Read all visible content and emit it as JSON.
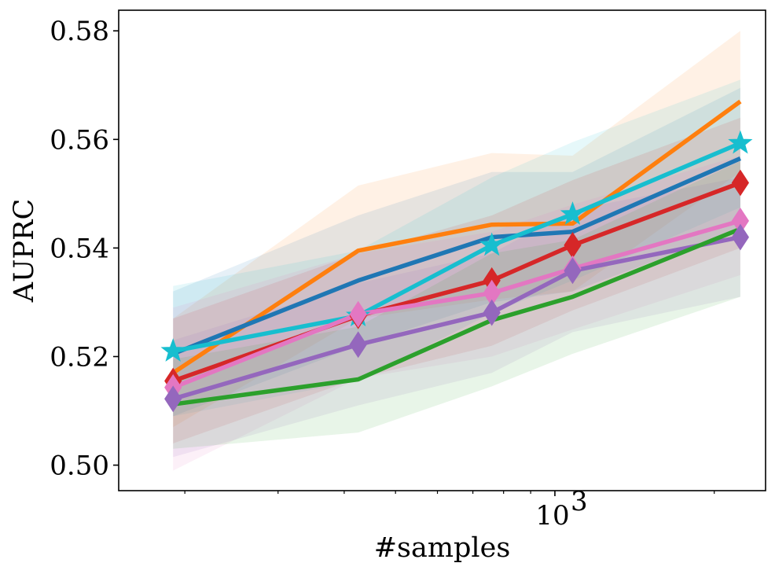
{
  "chart_data": {
    "type": "line",
    "title": "",
    "xlabel": "#samples",
    "ylabel": "AUPRC",
    "xscale": "log",
    "xlim": [
      150,
      2500
    ],
    "ylim": [
      0.4953,
      0.5838
    ],
    "x": [
      190,
      425,
      760,
      1080,
      2240
    ],
    "yticks": [
      0.5,
      0.52,
      0.54,
      0.56,
      0.58
    ],
    "ytick_labels": [
      "0.50",
      "0.52",
      "0.54",
      "0.56",
      "0.58"
    ],
    "xtick_major": [
      1000
    ],
    "xtick_major_labels": [
      "10",
      "3"
    ],
    "xtick_minor": [
      200,
      300,
      400,
      500,
      600,
      700,
      800,
      900,
      2000
    ],
    "series": [
      {
        "name": "orange",
        "color": "#ff7f0e",
        "marker": "none",
        "values": [
          0.517,
          0.5395,
          0.5443,
          0.5445,
          0.567
        ],
        "lower": [
          0.507,
          0.527,
          0.5305,
          0.532,
          0.554
        ],
        "upper": [
          0.527,
          0.5515,
          0.5575,
          0.557,
          0.58
        ]
      },
      {
        "name": "blue",
        "color": "#1f77b4",
        "marker": "none",
        "values": [
          0.5205,
          0.534,
          0.542,
          0.543,
          0.5565
        ],
        "lower": [
          0.509,
          0.522,
          0.53,
          0.532,
          0.5435
        ],
        "upper": [
          0.532,
          0.546,
          0.554,
          0.554,
          0.5695
        ]
      },
      {
        "name": "cyan",
        "color": "#17becf",
        "marker": "star",
        "values": [
          0.521,
          0.5275,
          0.5405,
          0.5462,
          0.5593
        ],
        "lower": [
          0.509,
          0.5155,
          0.528,
          0.534,
          0.5475
        ],
        "upper": [
          0.533,
          0.5395,
          0.553,
          0.5595,
          0.571
        ]
      },
      {
        "name": "red",
        "color": "#d62728",
        "marker": "diamond",
        "values": [
          0.5155,
          0.5275,
          0.534,
          0.5405,
          0.552
        ],
        "lower": [
          0.504,
          0.516,
          0.522,
          0.5285,
          0.54
        ],
        "upper": [
          0.527,
          0.539,
          0.546,
          0.5525,
          0.564
        ]
      },
      {
        "name": "pink",
        "color": "#e377c2",
        "marker": "diamond",
        "values": [
          0.5143,
          0.5278,
          0.5317,
          0.5362,
          0.545
        ],
        "lower": [
          0.499,
          0.516,
          0.52,
          0.525,
          0.535
        ],
        "upper": [
          0.529,
          0.539,
          0.543,
          0.548,
          0.557
        ]
      },
      {
        "name": "purple",
        "color": "#9467bd",
        "marker": "diamond",
        "values": [
          0.5122,
          0.5222,
          0.5281,
          0.5358,
          0.542
        ],
        "lower": [
          0.5015,
          0.511,
          0.517,
          0.5245,
          0.531
        ],
        "upper": [
          0.523,
          0.5335,
          0.539,
          0.547,
          0.553
        ]
      },
      {
        "name": "green",
        "color": "#2ca02c",
        "marker": "none",
        "values": [
          0.5112,
          0.5158,
          0.5267,
          0.531,
          0.5435
        ],
        "lower": [
          0.503,
          0.506,
          0.5145,
          0.5205,
          0.531
        ],
        "upper": [
          0.5195,
          0.5255,
          0.539,
          0.5415,
          0.556
        ]
      }
    ]
  }
}
